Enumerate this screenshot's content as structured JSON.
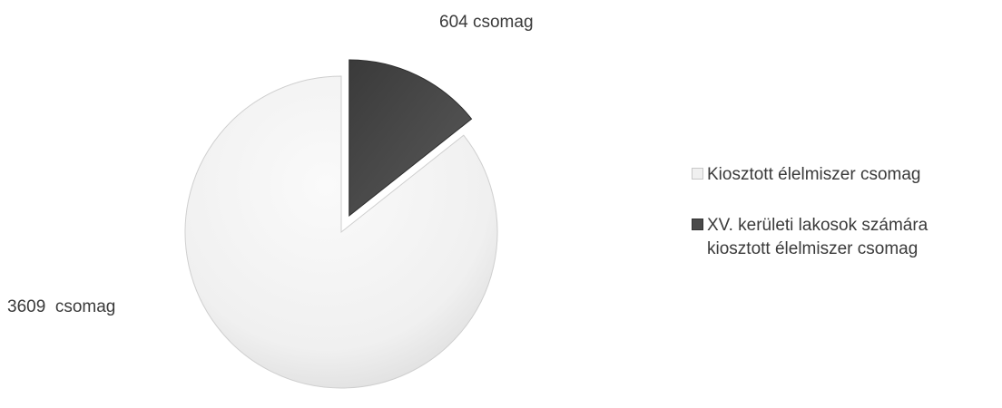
{
  "chart_data": {
    "type": "pie",
    "slices": [
      {
        "label": "Kiosztott élelmiszer csomag",
        "value": 3609,
        "data_label": "3609  csomag",
        "color": "#eeeeee",
        "exploded": false
      },
      {
        "label": "XV. kerületi lakosok számára\nkiosztott élelmiszer csomag",
        "value": 604,
        "data_label": "604 csomag",
        "color": "#4a4a4a",
        "exploded": true
      }
    ],
    "legend_position": "right"
  }
}
